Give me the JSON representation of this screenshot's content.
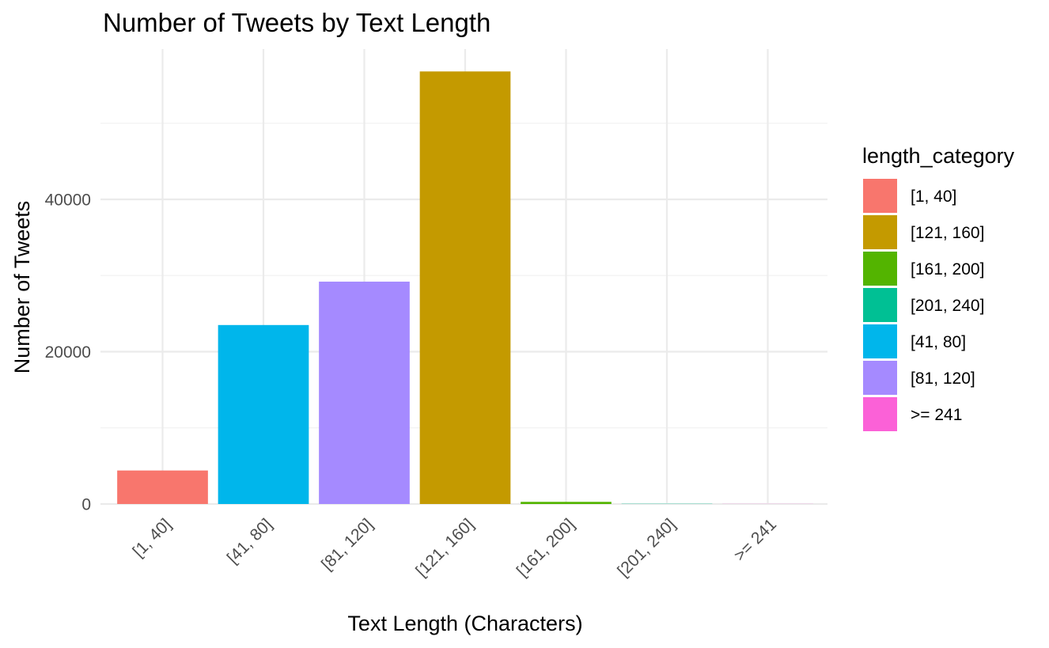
{
  "chart_data": {
    "type": "bar",
    "title": "Number of Tweets by Text Length",
    "xlabel": "Text Length (Characters)",
    "ylabel": "Number of Tweets",
    "categories": [
      "[1, 40]",
      "[41, 80]",
      "[81, 120]",
      "[121, 160]",
      "[161, 200]",
      "[201, 240]",
      ">= 241"
    ],
    "values": [
      4400,
      23500,
      29200,
      56800,
      280,
      30,
      15
    ],
    "colors": [
      "#F8766D",
      "#00B6EB",
      "#A58AFF",
      "#C49A00",
      "#53B400",
      "#00C094",
      "#FB61D7"
    ],
    "ylim": [
      0,
      60000
    ],
    "yticks": [
      0,
      20000,
      40000
    ],
    "ytick_labels": [
      "0",
      "20000",
      "40000"
    ],
    "grid": true,
    "legend": {
      "title": "length_category",
      "position": "right",
      "items": [
        {
          "label": "[1, 40]",
          "color": "#F8766D"
        },
        {
          "label": "[121, 160]",
          "color": "#C49A00"
        },
        {
          "label": "[161, 200]",
          "color": "#53B400"
        },
        {
          "label": "[201, 240]",
          "color": "#00C094"
        },
        {
          "label": "[41, 80]",
          "color": "#00B6EB"
        },
        {
          "label": "[81, 120]",
          "color": "#A58AFF"
        },
        {
          "label": ">= 241",
          "color": "#FB61D7"
        }
      ]
    }
  }
}
